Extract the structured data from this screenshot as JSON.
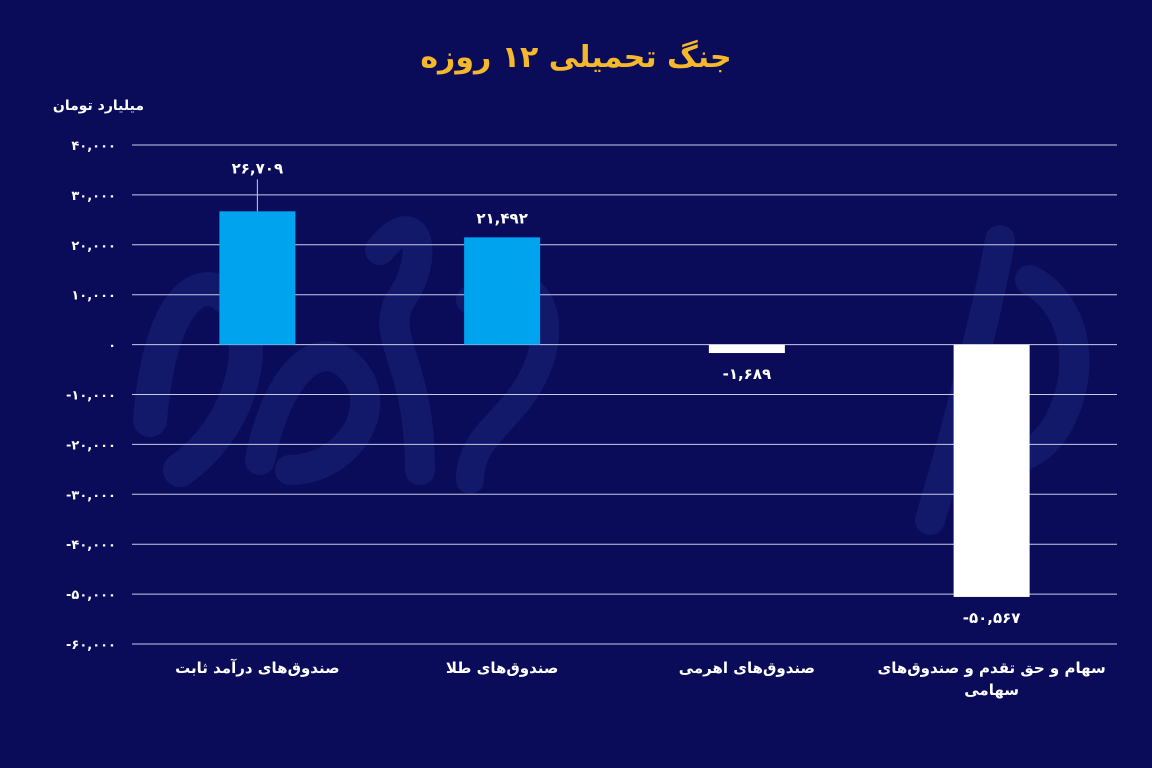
{
  "title": "جنگ تحمیلی ۱۲ روزه",
  "chart_data": {
    "type": "bar",
    "title": "جنگ تحمیلی ۱۲ روزه",
    "ylabel": "میلیارد تومان",
    "xlabel": "",
    "ylim": [
      -60000,
      40000
    ],
    "yticks": [
      40000,
      30000,
      20000,
      10000,
      0,
      -10000,
      -20000,
      -30000,
      -40000,
      -50000,
      -60000
    ],
    "ytick_labels": [
      "۴۰,۰۰۰",
      "۳۰,۰۰۰",
      "۲۰,۰۰۰",
      "۱۰,۰۰۰",
      "۰",
      "-۱۰,۰۰۰",
      "-۲۰,۰۰۰",
      "-۳۰,۰۰۰",
      "-۴۰,۰۰۰",
      "-۵۰,۰۰۰",
      "-۶۰,۰۰۰"
    ],
    "grid": true,
    "categories": [
      [
        "صندوق‌های درآمد ثابت"
      ],
      [
        "صندوق‌های طلا"
      ],
      [
        "صندوق‌های اهرمی"
      ],
      [
        "سهام و حق تقدم و صندوق‌های",
        "سهامی"
      ]
    ],
    "values": [
      26709,
      21492,
      -1689,
      -50567
    ],
    "value_labels": [
      "۲۶,۷۰۹",
      "۲۱,۴۹۲",
      "-۱,۶۸۹",
      "-۵۰,۵۶۷"
    ],
    "colors": {
      "positive": "#00a3ee",
      "negative": "#ffffff",
      "background": "#0a0c5a",
      "title": "#f5b82a",
      "grid": "#c8cbe6",
      "text": "#ffffff"
    }
  }
}
